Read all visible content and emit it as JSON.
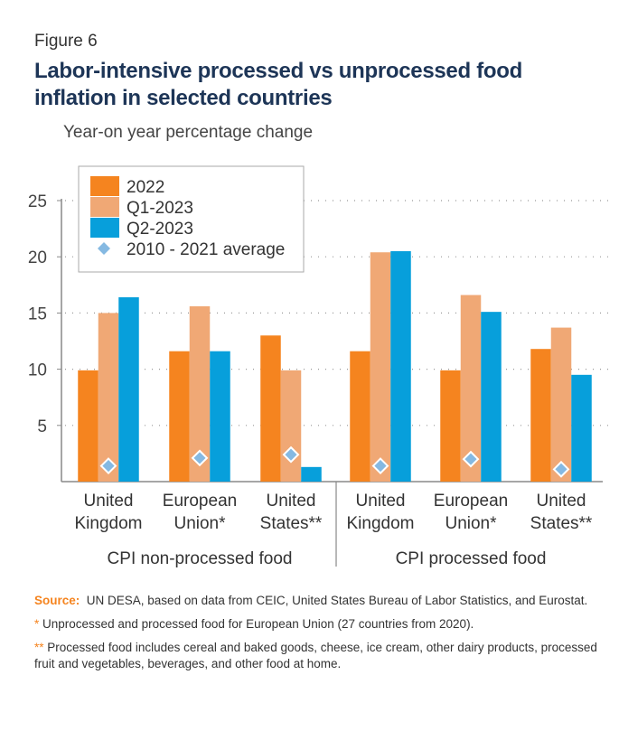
{
  "figure_label": "Figure 6",
  "title": "Labor-intensive processed vs unprocessed food inflation in selected countries",
  "chart_data": {
    "type": "bar",
    "ylabel": "Year-on year percentage change",
    "ylim": [
      0,
      25
    ],
    "yticks": [
      "5",
      "10",
      "15",
      "20",
      "25"
    ],
    "grid": true,
    "legend_position": "top-left",
    "groups": [
      "CPI non-processed food",
      "CPI processed food"
    ],
    "categories": [
      {
        "line1": "United",
        "line2": "Kingdom"
      },
      {
        "line1": "European",
        "line2": "Union*"
      },
      {
        "line1": "United",
        "line2": "States**"
      },
      {
        "line1": "United",
        "line2": "Kingdom"
      },
      {
        "line1": "European",
        "line2": "Union*"
      },
      {
        "line1": "United",
        "line2": "States**"
      }
    ],
    "series": [
      {
        "name": "2022",
        "color": "#f5841f",
        "values": [
          9.9,
          11.6,
          13.0,
          11.6,
          9.9,
          11.8
        ]
      },
      {
        "name": "Q1-2023",
        "color": "#f0a875",
        "values": [
          15.0,
          15.6,
          9.9,
          20.4,
          16.6,
          13.7
        ]
      },
      {
        "name": "Q2-2023",
        "color": "#079fdb",
        "values": [
          16.4,
          11.6,
          1.3,
          20.5,
          15.1,
          9.5
        ]
      },
      {
        "name": "2010 - 2021 average",
        "color": "#85b9e2",
        "marker": "diamond",
        "values": [
          1.4,
          2.1,
          2.4,
          1.4,
          2.0,
          1.1
        ]
      }
    ]
  },
  "notes": {
    "source_label": "Source:",
    "source_text": "UN DESA, based on data from CEIC, United States Bureau of Labor Statistics, and Eurostat.",
    "note1_mark": "*",
    "note1_text": "Unprocessed and processed food for European Union (27 countries from 2020).",
    "note2_mark": "**",
    "note2_text": "Processed food includes cereal and baked goods, cheese, ice cream, other dairy products, processed fruit and vegetables, beverages, and other food at home."
  }
}
